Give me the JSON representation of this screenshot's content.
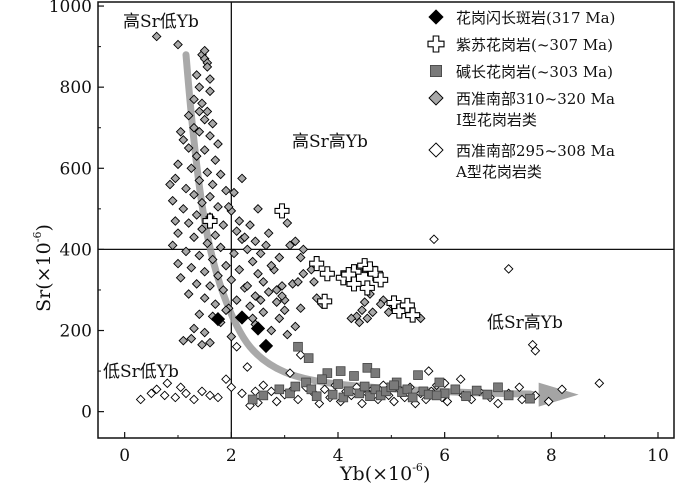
{
  "chart_data": {
    "type": "scatter",
    "xlabel": "Yb(×10",
    "xlabel_sup": "-6",
    "xlabel_tail": ")",
    "ylabel": "Sr(×10",
    "ylabel_sup": "-6",
    "ylabel_tail": ")",
    "xlim": [
      -0.5,
      10.3
    ],
    "ylim": [
      -65,
      1010
    ],
    "xticks": [
      0,
      2,
      4,
      6,
      8,
      10
    ],
    "yticks": [
      0,
      200,
      400,
      600,
      800,
      1000
    ],
    "xtick_labels": [
      "0",
      "2",
      "4",
      "6",
      "8",
      "10"
    ],
    "ytick_labels": [
      "0",
      "200",
      "400",
      "600",
      "800",
      "1000"
    ],
    "divider_lines": {
      "x": 2,
      "y": 400
    },
    "regions": {
      "high_sr_low_yb": "高Sr低Yb",
      "high_sr_high_yb": "高Sr高Yb",
      "low_sr_high_yb": "低Sr高Yb",
      "low_sr_low_yb": "低Sr低Yb"
    },
    "trend_arrow": [
      [
        1.15,
        880
      ],
      [
        1.3,
        640
      ],
      [
        1.6,
        380
      ],
      [
        2.1,
        200
      ],
      [
        2.6,
        120
      ],
      [
        3.4,
        75
      ],
      [
        5,
        55
      ],
      [
        6.8,
        45
      ],
      [
        8.4,
        42
      ]
    ],
    "legend": {
      "position": "top-right",
      "entries": [
        {
          "label": "花岗闪长斑岩(317 Ma)",
          "marker": "filled-diamond",
          "color": "#000000"
        },
        {
          "label": "紫苏花岗岩(~307 Ma)",
          "marker": "open-cross",
          "color": "#000000"
        },
        {
          "label": "碱长花岗岩(~303 Ma)",
          "marker": "gray-square",
          "color": "#777777"
        },
        {
          "label": "西准南部310~320 Ma",
          "label2": "I型花岗岩类",
          "marker": "gray-diamond",
          "color": "#aaaaaa"
        },
        {
          "label": "西准南部295~308 Ma",
          "label2": "A型花岗岩类",
          "marker": "open-diamond",
          "color": "#ffffff"
        }
      ]
    },
    "series": [
      {
        "name": "花岗闪长斑岩(317 Ma)",
        "marker": "filled-diamond",
        "points": [
          [
            1.75,
            228
          ],
          [
            2.2,
            232
          ],
          [
            2.5,
            205
          ],
          [
            2.65,
            162
          ]
        ]
      },
      {
        "name": "紫苏花岗岩(~307 Ma)",
        "marker": "open-cross",
        "points": [
          [
            1.6,
            470
          ],
          [
            2.95,
            495
          ],
          [
            3.6,
            365
          ],
          [
            3.8,
            340
          ],
          [
            3.75,
            272
          ],
          [
            4.1,
            330
          ],
          [
            4.3,
            345
          ],
          [
            4.5,
            360
          ],
          [
            4.6,
            352
          ],
          [
            4.7,
            340
          ],
          [
            4.55,
            305
          ],
          [
            4.8,
            325
          ],
          [
            5.05,
            268
          ],
          [
            5.15,
            248
          ],
          [
            5.3,
            262
          ],
          [
            5.4,
            238
          ],
          [
            4.3,
            315
          ],
          [
            4.2,
            338
          ]
        ]
      },
      {
        "name": "碱长花岗岩(~303 Ma)",
        "marker": "gray-square",
        "points": [
          [
            2.4,
            30
          ],
          [
            2.6,
            40
          ],
          [
            2.9,
            55
          ],
          [
            3.1,
            45
          ],
          [
            3.2,
            62
          ],
          [
            3.4,
            72
          ],
          [
            3.5,
            55
          ],
          [
            3.6,
            38
          ],
          [
            3.8,
            95
          ],
          [
            3.9,
            42
          ],
          [
            4.0,
            68
          ],
          [
            4.1,
            35
          ],
          [
            4.2,
            50
          ],
          [
            4.3,
            88
          ],
          [
            4.4,
            45
          ],
          [
            4.5,
            62
          ],
          [
            4.6,
            38
          ],
          [
            4.7,
            55
          ],
          [
            4.8,
            40
          ],
          [
            4.9,
            50
          ],
          [
            5.0,
            60
          ],
          [
            5.1,
            72
          ],
          [
            5.2,
            48
          ],
          [
            5.3,
            55
          ],
          [
            5.4,
            35
          ],
          [
            5.5,
            90
          ],
          [
            5.6,
            50
          ],
          [
            5.7,
            42
          ],
          [
            5.9,
            72
          ],
          [
            6.0,
            45
          ],
          [
            6.2,
            55
          ],
          [
            6.4,
            38
          ],
          [
            6.6,
            52
          ],
          [
            6.8,
            42
          ],
          [
            7.0,
            60
          ],
          [
            7.2,
            40
          ],
          [
            7.6,
            32
          ],
          [
            3.25,
            160
          ],
          [
            3.45,
            132
          ],
          [
            4.55,
            108
          ],
          [
            4.7,
            95
          ],
          [
            5.05,
            65
          ],
          [
            4.05,
            100
          ],
          [
            3.7,
            80
          ],
          [
            5.85,
            40
          ]
        ]
      },
      {
        "name": "西准南部310~320 Ma I型花岗岩类",
        "marker": "gray-diamond",
        "points": [
          [
            0.6,
            925
          ],
          [
            1.0,
            905
          ],
          [
            1.45,
            880
          ],
          [
            1.5,
            870
          ],
          [
            1.55,
            860
          ],
          [
            1.35,
            830
          ],
          [
            1.4,
            800
          ],
          [
            1.6,
            790
          ],
          [
            1.3,
            770
          ],
          [
            1.45,
            760
          ],
          [
            1.55,
            740
          ],
          [
            1.2,
            730
          ],
          [
            1.5,
            720
          ],
          [
            1.65,
            710
          ],
          [
            1.3,
            700
          ],
          [
            1.4,
            690
          ],
          [
            1.6,
            680
          ],
          [
            1.1,
            670
          ],
          [
            1.75,
            660
          ],
          [
            1.2,
            650
          ],
          [
            1.5,
            645
          ],
          [
            1.35,
            630
          ],
          [
            1.7,
            620
          ],
          [
            1.0,
            610
          ],
          [
            1.25,
            600
          ],
          [
            1.55,
            590
          ],
          [
            1.8,
            585
          ],
          [
            0.95,
            575
          ],
          [
            1.4,
            570
          ],
          [
            1.65,
            560
          ],
          [
            1.15,
            550
          ],
          [
            1.9,
            545
          ],
          [
            1.3,
            535
          ],
          [
            1.6,
            530
          ],
          [
            0.9,
            520
          ],
          [
            1.45,
            515
          ],
          [
            1.75,
            505
          ],
          [
            1.1,
            500
          ],
          [
            2.0,
            495
          ],
          [
            1.35,
            485
          ],
          [
            1.6,
            480
          ],
          [
            0.95,
            470
          ],
          [
            1.2,
            465
          ],
          [
            1.85,
            460
          ],
          [
            1.45,
            450
          ],
          [
            2.1,
            445
          ],
          [
            1.0,
            440
          ],
          [
            1.7,
            435
          ],
          [
            1.3,
            430
          ],
          [
            2.2,
            425
          ],
          [
            1.55,
            415
          ],
          [
            0.9,
            410
          ],
          [
            1.8,
            405
          ],
          [
            2.3,
            400
          ],
          [
            1.15,
            395
          ],
          [
            2.05,
            390
          ],
          [
            1.4,
            385
          ],
          [
            1.65,
            375
          ],
          [
            2.4,
            370
          ],
          [
            1.0,
            365
          ],
          [
            1.9,
            360
          ],
          [
            1.25,
            355
          ],
          [
            2.15,
            350
          ],
          [
            1.5,
            345
          ],
          [
            2.5,
            340
          ],
          [
            1.75,
            335
          ],
          [
            1.05,
            330
          ],
          [
            2.0,
            325
          ],
          [
            2.6,
            320
          ],
          [
            1.35,
            315
          ],
          [
            1.6,
            310
          ],
          [
            2.25,
            305
          ],
          [
            1.85,
            300
          ],
          [
            2.7,
            295
          ],
          [
            1.2,
            290
          ],
          [
            2.45,
            285
          ],
          [
            1.5,
            280
          ],
          [
            2.1,
            275
          ],
          [
            2.85,
            270
          ],
          [
            1.7,
            265
          ],
          [
            2.35,
            260
          ],
          [
            1.95,
            255
          ],
          [
            3.0,
            250
          ],
          [
            2.6,
            245
          ],
          [
            1.4,
            240
          ],
          [
            2.2,
            235
          ],
          [
            2.9,
            230
          ],
          [
            1.8,
            220
          ],
          [
            2.45,
            215
          ],
          [
            3.2,
            210
          ],
          [
            1.3,
            205
          ],
          [
            2.75,
            200
          ],
          [
            1.5,
            195
          ],
          [
            3.05,
            190
          ],
          [
            2.0,
            185
          ],
          [
            1.25,
            180
          ],
          [
            1.6,
            170
          ],
          [
            1.45,
            165
          ],
          [
            1.1,
            175
          ],
          [
            2.85,
            300
          ],
          [
            2.95,
            310
          ],
          [
            3.3,
            255
          ],
          [
            3.0,
            275
          ],
          [
            2.55,
            275
          ],
          [
            1.9,
            250
          ],
          [
            2.4,
            230
          ],
          [
            1.65,
            235
          ],
          [
            0.85,
            560
          ],
          [
            1.05,
            690
          ],
          [
            1.4,
            740
          ],
          [
            1.6,
            820
          ],
          [
            1.5,
            890
          ],
          [
            1.55,
            850
          ],
          [
            2.05,
            540
          ],
          [
            2.15,
            470
          ],
          [
            2.35,
            460
          ],
          [
            2.5,
            500
          ],
          [
            1.95,
            505
          ],
          [
            2.2,
            575
          ],
          [
            2.45,
            420
          ],
          [
            2.65,
            410
          ],
          [
            2.8,
            350
          ],
          [
            3.35,
            340
          ],
          [
            3.15,
            315
          ],
          [
            2.3,
            310
          ],
          [
            2.9,
            380
          ],
          [
            3.1,
            410
          ],
          [
            4.6,
            290
          ],
          [
            4.85,
            275
          ],
          [
            4.95,
            245
          ],
          [
            5.0,
            265
          ],
          [
            4.8,
            265
          ],
          [
            4.5,
            270
          ],
          [
            4.45,
            250
          ],
          [
            4.35,
            235
          ],
          [
            4.4,
            220
          ],
          [
            4.55,
            230
          ],
          [
            4.65,
            245
          ],
          [
            4.25,
            230
          ],
          [
            5.55,
            230
          ],
          [
            5.2,
            250
          ],
          [
            3.2,
            420
          ],
          [
            3.35,
            400
          ],
          [
            3.3,
            380
          ],
          [
            2.55,
            390
          ],
          [
            2.75,
            360
          ],
          [
            3.25,
            320
          ],
          [
            3.55,
            320
          ],
          [
            2.95,
            285
          ],
          [
            3.6,
            280
          ],
          [
            3.7,
            265
          ],
          [
            3.5,
            350
          ],
          [
            3.05,
            465
          ],
          [
            2.7,
            440
          ],
          [
            2.25,
            430
          ]
        ]
      },
      {
        "name": "西准南部295~308 Ma A型花岗岩类",
        "marker": "open-diamond",
        "points": [
          [
            0.3,
            30
          ],
          [
            0.5,
            45
          ],
          [
            0.6,
            55
          ],
          [
            0.75,
            40
          ],
          [
            0.8,
            70
          ],
          [
            0.95,
            35
          ],
          [
            1.05,
            60
          ],
          [
            1.15,
            45
          ],
          [
            1.3,
            30
          ],
          [
            1.45,
            50
          ],
          [
            1.6,
            40
          ],
          [
            1.75,
            35
          ],
          [
            2.0,
            60
          ],
          [
            2.2,
            45
          ],
          [
            2.35,
            15
          ],
          [
            2.5,
            22
          ],
          [
            2.6,
            65
          ],
          [
            2.75,
            50
          ],
          [
            2.85,
            25
          ],
          [
            3.0,
            42
          ],
          [
            3.15,
            55
          ],
          [
            3.25,
            30
          ],
          [
            3.4,
            60
          ],
          [
            3.55,
            45
          ],
          [
            3.65,
            20
          ],
          [
            3.75,
            55
          ],
          [
            3.85,
            35
          ],
          [
            3.95,
            65
          ],
          [
            4.05,
            25
          ],
          [
            4.15,
            50
          ],
          [
            4.25,
            40
          ],
          [
            4.35,
            60
          ],
          [
            4.45,
            20
          ],
          [
            4.55,
            45
          ],
          [
            4.65,
            55
          ],
          [
            4.75,
            30
          ],
          [
            4.85,
            65
          ],
          [
            4.95,
            40
          ],
          [
            5.05,
            25
          ],
          [
            5.15,
            55
          ],
          [
            5.25,
            35
          ],
          [
            5.35,
            60
          ],
          [
            5.45,
            20
          ],
          [
            5.55,
            45
          ],
          [
            5.65,
            30
          ],
          [
            5.75,
            50
          ],
          [
            5.85,
            65
          ],
          [
            5.95,
            35
          ],
          [
            6.05,
            25
          ],
          [
            6.2,
            55
          ],
          [
            6.35,
            40
          ],
          [
            6.5,
            30
          ],
          [
            6.65,
            50
          ],
          [
            6.85,
            35
          ],
          [
            7.0,
            20
          ],
          [
            7.2,
            45
          ],
          [
            7.45,
            30
          ],
          [
            7.7,
            40
          ],
          [
            7.95,
            25
          ],
          [
            8.2,
            55
          ],
          [
            8.9,
            70
          ],
          [
            7.7,
            150
          ],
          [
            7.65,
            165
          ],
          [
            7.2,
            352
          ],
          [
            5.8,
            425
          ],
          [
            5.7,
            100
          ],
          [
            6.3,
            80
          ],
          [
            7.4,
            60
          ],
          [
            2.1,
            160
          ],
          [
            2.3,
            110
          ],
          [
            2.45,
            50
          ],
          [
            1.9,
            80
          ],
          [
            3.3,
            140
          ],
          [
            3.1,
            95
          ],
          [
            6.0,
            70
          ]
        ]
      }
    ]
  }
}
